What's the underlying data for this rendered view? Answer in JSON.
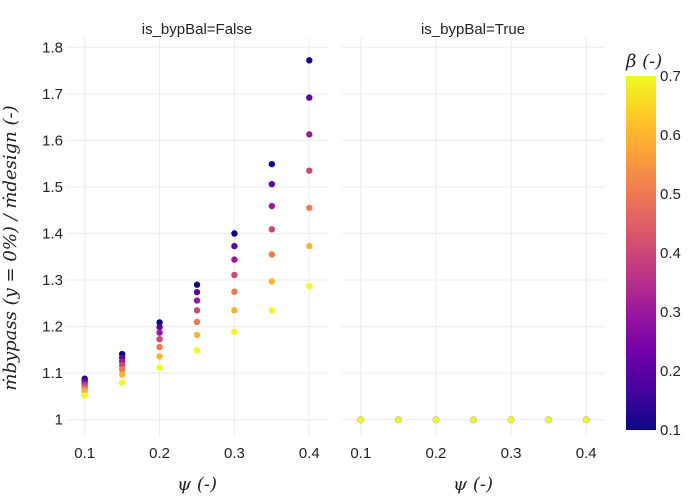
{
  "chart_data": {
    "type": "scatter",
    "facets": [
      {
        "title": "is_bypBal=False"
      },
      {
        "title": "is_bypBal=True"
      }
    ],
    "xlabel": "ψ (-)",
    "ylabel": "ṁbypass (y = 0%) / ṁdesign (-)",
    "colorbar_title": "β (-)",
    "xlim": [
      0.075,
      0.425
    ],
    "ylim": [
      0.965,
      1.82
    ],
    "x_ticks": [
      0.1,
      0.2,
      0.3,
      0.4
    ],
    "x_tick_labels": [
      "0.1",
      "0.2",
      "0.3",
      "0.4"
    ],
    "y_ticks": [
      1.0,
      1.1,
      1.2,
      1.3,
      1.4,
      1.5,
      1.6,
      1.7,
      1.8
    ],
    "y_tick_labels": [
      "1",
      "1.1",
      "1.2",
      "1.3",
      "1.4",
      "1.5",
      "1.6",
      "1.7",
      "1.8"
    ],
    "colorbar_ticks": [
      0.1,
      0.2,
      0.3,
      0.4,
      0.5,
      0.6,
      0.7
    ],
    "colorbar_tick_labels": [
      "0.1",
      "0.2",
      "0.3",
      "0.4",
      "0.5",
      "0.6",
      "0.7"
    ],
    "color_range": [
      0.1,
      0.7
    ],
    "colorscale": "plasma",
    "beta_values": [
      0.1,
      0.2,
      0.3,
      0.4,
      0.5,
      0.6,
      0.7
    ],
    "psi_values": [
      0.1,
      0.15,
      0.2,
      0.25,
      0.3,
      0.35,
      0.4
    ],
    "series_false": [
      {
        "x": 0.1,
        "y": [
          1.088,
          1.083,
          1.078,
          1.073,
          1.067,
          1.061,
          1.052
        ]
      },
      {
        "x": 0.15,
        "y": [
          1.141,
          1.133,
          1.125,
          1.117,
          1.108,
          1.097,
          1.08
        ]
      },
      {
        "x": 0.2,
        "y": [
          1.209,
          1.199,
          1.187,
          1.173,
          1.156,
          1.136,
          1.112
        ]
      },
      {
        "x": 0.25,
        "y": [
          1.29,
          1.274,
          1.256,
          1.235,
          1.21,
          1.182,
          1.149
        ]
      },
      {
        "x": 0.3,
        "y": [
          1.4,
          1.373,
          1.344,
          1.311,
          1.275,
          1.235,
          1.189
        ]
      },
      {
        "x": 0.35,
        "y": [
          1.549,
          1.506,
          1.459,
          1.409,
          1.355,
          1.297,
          1.235
        ]
      },
      {
        "x": 0.4,
        "y": [
          1.772,
          1.692,
          1.613,
          1.535,
          1.455,
          1.373,
          1.287
        ]
      }
    ],
    "series_true": [
      {
        "x": 0.1,
        "y": [
          1.0,
          1.0,
          1.0,
          1.0,
          1.0,
          1.0,
          1.0
        ]
      },
      {
        "x": 0.15,
        "y": [
          1.0,
          1.0,
          1.0,
          1.0,
          1.0,
          1.0,
          1.0
        ]
      },
      {
        "x": 0.2,
        "y": [
          1.0,
          1.0,
          1.0,
          1.0,
          1.0,
          1.0,
          1.0
        ]
      },
      {
        "x": 0.25,
        "y": [
          1.0,
          1.0,
          1.0,
          1.0,
          1.0,
          1.0,
          1.0
        ]
      },
      {
        "x": 0.3,
        "y": [
          1.0,
          1.0,
          1.0,
          1.0,
          1.0,
          1.0,
          1.0
        ]
      },
      {
        "x": 0.35,
        "y": [
          1.0,
          1.0,
          1.0,
          1.0,
          1.0,
          1.0,
          1.0
        ]
      },
      {
        "x": 0.4,
        "y": [
          1.0,
          1.0,
          1.0,
          1.0,
          1.0,
          1.0,
          1.0
        ]
      }
    ],
    "grid": true,
    "legend": "colorbar-right"
  }
}
